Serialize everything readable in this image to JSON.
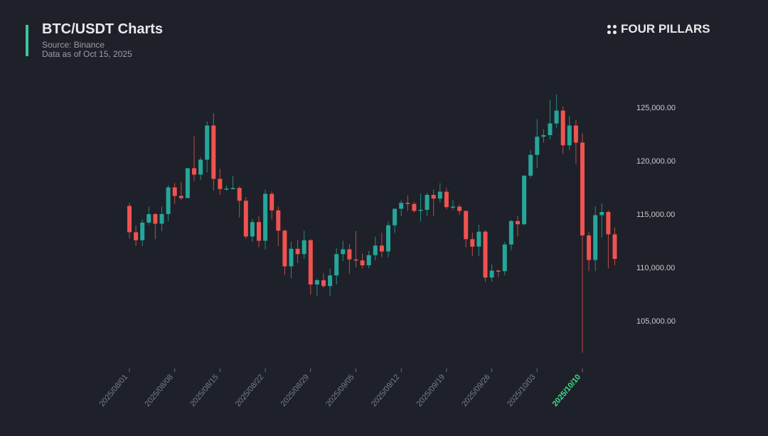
{
  "header": {
    "title": "BTC/USDT Charts",
    "source": "Source: Binance",
    "asof": "Data as of Oct 15, 2025",
    "brand": "FOUR PILLARS"
  },
  "colors": {
    "up": "#26a69a",
    "down": "#ef5350",
    "accent": "#3fc59d",
    "highlight": "#3fdc8f"
  },
  "chart_data": {
    "type": "candlestick",
    "title": "BTC/USDT Charts",
    "ylim": [
      101000,
      127000
    ],
    "y_ticks": [
      105000,
      110000,
      115000,
      120000,
      125000
    ],
    "y_tick_labels": [
      "105,000.00",
      "110,000.00",
      "115,000.00",
      "120,000.00",
      "125,000.00"
    ],
    "x_tick_labels": [
      "2025/08/01",
      "2025/08/08",
      "2025/08/15",
      "2025/08/22",
      "2025/08/29",
      "2025/09/05",
      "2025/09/12",
      "2025/09/19",
      "2025/09/26",
      "2025/10/03",
      "2025/10/10"
    ],
    "highlight_label": "2025/10/10",
    "start_date": "2025-08-01",
    "ohlc": [
      [
        115760,
        116050,
        112700,
        113300
      ],
      [
        113300,
        113950,
        112000,
        112550
      ],
      [
        112550,
        114500,
        112000,
        114200
      ],
      [
        114200,
        115700,
        114000,
        115000
      ],
      [
        115000,
        115100,
        112650,
        114100
      ],
      [
        114100,
        115700,
        113400,
        115000
      ],
      [
        115000,
        117700,
        114350,
        117500
      ],
      [
        117500,
        117900,
        115950,
        116700
      ],
      [
        116700,
        118000,
        116300,
        116500
      ],
      [
        116500,
        119300,
        116500,
        119300
      ],
      [
        119300,
        122300,
        118100,
        118700
      ],
      [
        118700,
        120300,
        118200,
        120100
      ],
      [
        120100,
        123700,
        118900,
        123300
      ],
      [
        123300,
        124450,
        117200,
        118300
      ],
      [
        118300,
        119250,
        116800,
        117350
      ],
      [
        117350,
        117700,
        117200,
        117400
      ],
      [
        117400,
        118600,
        117300,
        117450
      ],
      [
        117450,
        117600,
        114700,
        116250
      ],
      [
        116250,
        116600,
        112700,
        112900
      ],
      [
        112900,
        114550,
        112400,
        114250
      ],
      [
        114250,
        114800,
        111900,
        112500
      ],
      [
        112500,
        117300,
        111650,
        116900
      ],
      [
        116900,
        117150,
        114500,
        115350
      ],
      [
        115350,
        115700,
        112000,
        113450
      ],
      [
        113450,
        113550,
        109300,
        110100
      ],
      [
        110100,
        112400,
        109000,
        111750
      ],
      [
        111750,
        112600,
        110400,
        111250
      ],
      [
        111250,
        113450,
        110800,
        112550
      ],
      [
        112550,
        112650,
        107450,
        108400
      ],
      [
        108400,
        108950,
        107300,
        108800
      ],
      [
        108800,
        109450,
        108100,
        108250
      ],
      [
        108250,
        109900,
        107300,
        109250
      ],
      [
        109250,
        111800,
        108400,
        111250
      ],
      [
        111250,
        112500,
        110600,
        111700
      ],
      [
        111700,
        112200,
        109400,
        110750
      ],
      [
        110750,
        113400,
        110000,
        110650
      ],
      [
        110650,
        111300,
        109900,
        110200
      ],
      [
        110200,
        111550,
        109900,
        111150
      ],
      [
        111150,
        112900,
        110650,
        112050
      ],
      [
        112050,
        113250,
        110950,
        111500
      ],
      [
        111500,
        114300,
        110950,
        113950
      ],
      [
        113950,
        115500,
        113250,
        115500
      ],
      [
        115500,
        116300,
        114800,
        116050
      ],
      [
        116050,
        116750,
        115300,
        115950
      ],
      [
        115950,
        116150,
        115150,
        115300
      ],
      [
        115300,
        116900,
        114300,
        115400
      ],
      [
        115400,
        117000,
        114800,
        116800
      ],
      [
        116800,
        117300,
        114800,
        116450
      ],
      [
        116450,
        117900,
        116100,
        117100
      ],
      [
        117100,
        117450,
        115450,
        115650
      ],
      [
        115650,
        116300,
        115400,
        115700
      ],
      [
        115700,
        115900,
        114950,
        115300
      ],
      [
        115300,
        115300,
        111900,
        112650
      ],
      [
        112650,
        113250,
        111050,
        111950
      ],
      [
        111950,
        114000,
        111050,
        113350
      ],
      [
        113350,
        113500,
        108650,
        109050
      ],
      [
        109050,
        110300,
        108650,
        109700
      ],
      [
        109700,
        109800,
        109100,
        109650
      ],
      [
        109650,
        112400,
        109250,
        112150
      ],
      [
        112150,
        114450,
        111600,
        114350
      ],
      [
        114350,
        114850,
        112900,
        114050
      ],
      [
        114050,
        118650,
        113950,
        118600
      ],
      [
        118600,
        121000,
        118400,
        120550
      ],
      [
        120550,
        123900,
        119300,
        122250
      ],
      [
        122250,
        122950,
        121700,
        122400
      ],
      [
        122400,
        125700,
        122000,
        123500
      ],
      [
        123500,
        126200,
        123100,
        124700
      ],
      [
        124700,
        125100,
        120650,
        121450
      ],
      [
        121450,
        124200,
        121000,
        123300
      ],
      [
        123300,
        123800,
        119700,
        121700
      ],
      [
        121700,
        122550,
        102000,
        113000
      ],
      [
        113000,
        113350,
        109650,
        110700
      ],
      [
        110700,
        115750,
        109650,
        114900
      ],
      [
        114900,
        116000,
        112800,
        115200
      ],
      [
        115200,
        115350,
        109900,
        113100
      ],
      [
        113100,
        113750,
        110200,
        110800
      ]
    ]
  }
}
